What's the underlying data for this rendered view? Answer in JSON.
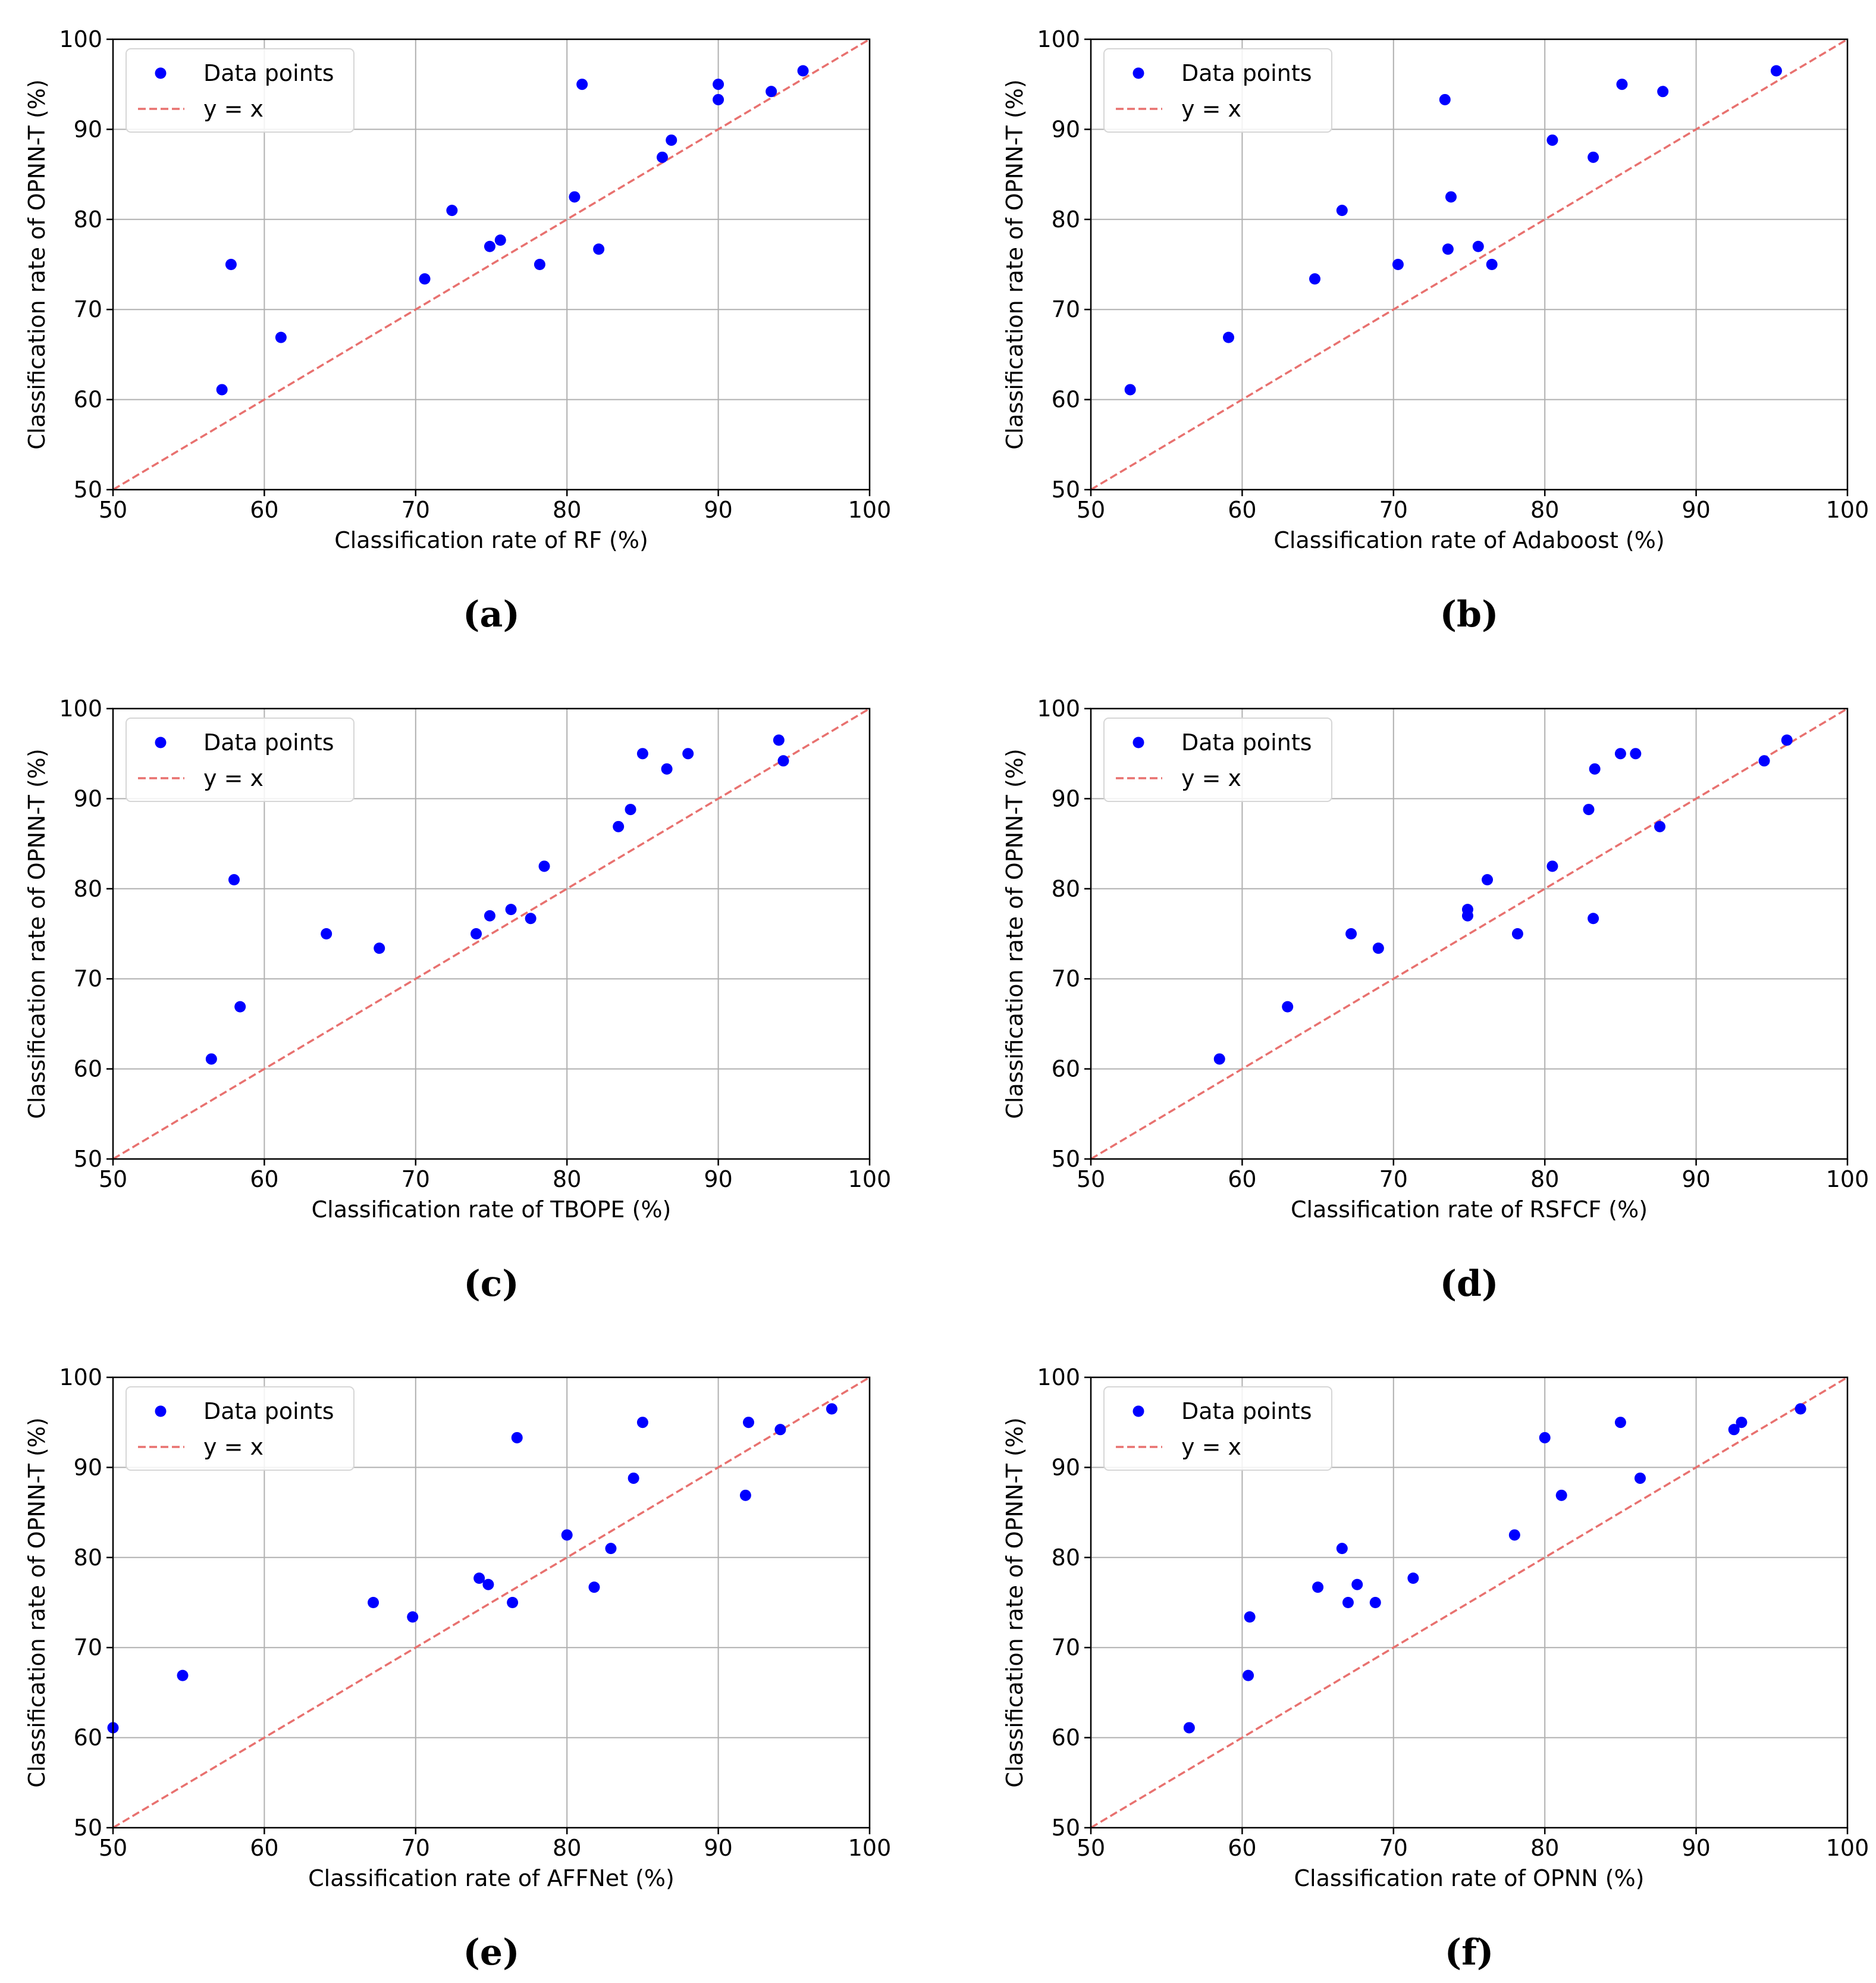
{
  "legend": {
    "points_label": "Data points",
    "line_label": "y = x"
  },
  "colors": {
    "points": "#0000ff",
    "diagonal": "#e8716f",
    "grid": "#b0b0b0",
    "axis": "#000000"
  },
  "chart_data": [
    {
      "type": "scatter",
      "panel_label": "(a)",
      "xlabel": "Classification rate of RF (%)",
      "ylabel": "Classification rate of OPNN-T (%)",
      "xlim": [
        50,
        100
      ],
      "ylim": [
        50,
        100
      ],
      "xticks": [
        50,
        60,
        70,
        80,
        90,
        100
      ],
      "yticks": [
        50,
        60,
        70,
        80,
        90,
        100
      ],
      "grid": true,
      "legend_position": "top-left",
      "series": [
        {
          "name": "Data points",
          "x": [
            57.2,
            57.8,
            61.1,
            70.6,
            72.4,
            74.9,
            75.6,
            78.2,
            80.5,
            81.0,
            82.1,
            86.3,
            86.9,
            90.0,
            90.0,
            93.5,
            95.6
          ],
          "y": [
            61.1,
            75.0,
            66.9,
            73.4,
            81.0,
            77.0,
            77.7,
            75.0,
            82.5,
            95.0,
            76.7,
            86.9,
            88.8,
            95.0,
            93.3,
            94.2,
            96.5
          ]
        }
      ]
    },
    {
      "type": "scatter",
      "panel_label": "(b)",
      "xlabel": "Classification rate of Adaboost (%)",
      "ylabel": "Classification rate of OPNN-T (%)",
      "xlim": [
        50,
        100
      ],
      "ylim": [
        50,
        100
      ],
      "xticks": [
        50,
        60,
        70,
        80,
        90,
        100
      ],
      "yticks": [
        50,
        60,
        70,
        80,
        90,
        100
      ],
      "grid": true,
      "legend_position": "top-left",
      "series": [
        {
          "name": "Data points",
          "x": [
            52.6,
            59.1,
            64.8,
            66.6,
            70.3,
            73.4,
            73.6,
            73.8,
            75.6,
            76.5,
            80.5,
            83.2,
            85.1,
            87.8,
            95.3
          ],
          "y": [
            61.1,
            66.9,
            73.4,
            81.0,
            75.0,
            93.3,
            76.7,
            82.5,
            77.0,
            75.0,
            88.8,
            86.9,
            95.0,
            94.2,
            96.5
          ]
        }
      ]
    },
    {
      "type": "scatter",
      "panel_label": "(c)",
      "xlabel": "Classification rate of TBOPE (%)",
      "ylabel": "Classification rate of OPNN-T (%)",
      "xlim": [
        50,
        100
      ],
      "ylim": [
        50,
        100
      ],
      "xticks": [
        50,
        60,
        70,
        80,
        90,
        100
      ],
      "yticks": [
        50,
        60,
        70,
        80,
        90,
        100
      ],
      "grid": true,
      "legend_position": "top-left",
      "series": [
        {
          "name": "Data points",
          "x": [
            56.5,
            58.0,
            58.4,
            64.1,
            67.6,
            74.0,
            74.9,
            76.3,
            77.6,
            78.5,
            83.4,
            84.2,
            85.0,
            86.6,
            88.0,
            94.0,
            94.3
          ],
          "y": [
            61.1,
            81.0,
            66.9,
            75.0,
            73.4,
            75.0,
            77.0,
            77.7,
            76.7,
            82.5,
            86.9,
            88.8,
            95.0,
            93.3,
            95.0,
            96.5,
            94.2
          ]
        }
      ]
    },
    {
      "type": "scatter",
      "panel_label": "(d)",
      "xlabel": "Classification rate of RSFCF (%)",
      "ylabel": "Classification rate of OPNN-T (%)",
      "xlim": [
        50,
        100
      ],
      "ylim": [
        50,
        100
      ],
      "xticks": [
        50,
        60,
        70,
        80,
        90,
        100
      ],
      "yticks": [
        50,
        60,
        70,
        80,
        90,
        100
      ],
      "grid": true,
      "legend_position": "top-left",
      "series": [
        {
          "name": "Data points",
          "x": [
            58.5,
            63.0,
            67.2,
            69.0,
            74.9,
            74.9,
            76.2,
            78.2,
            80.5,
            82.9,
            83.2,
            83.3,
            85.0,
            86.0,
            87.6,
            94.5,
            96.0
          ],
          "y": [
            61.1,
            66.9,
            75.0,
            73.4,
            77.7,
            77.0,
            81.0,
            75.0,
            82.5,
            88.8,
            76.7,
            93.3,
            95.0,
            95.0,
            86.9,
            94.2,
            96.5
          ]
        }
      ]
    },
    {
      "type": "scatter",
      "panel_label": "(e)",
      "xlabel": "Classification rate of AFFNet (%)",
      "ylabel": "Classification rate of OPNN-T (%)",
      "xlim": [
        50,
        100
      ],
      "ylim": [
        50,
        100
      ],
      "xticks": [
        50,
        60,
        70,
        80,
        90,
        100
      ],
      "yticks": [
        50,
        60,
        70,
        80,
        90,
        100
      ],
      "grid": true,
      "legend_position": "top-left",
      "series": [
        {
          "name": "Data points",
          "x": [
            50.0,
            54.6,
            67.2,
            69.8,
            74.2,
            74.8,
            76.4,
            76.7,
            80.0,
            81.8,
            82.9,
            84.4,
            85.0,
            91.8,
            92.0,
            94.1,
            97.5
          ],
          "y": [
            61.1,
            66.9,
            75.0,
            73.4,
            77.7,
            77.0,
            75.0,
            93.3,
            82.5,
            76.7,
            81.0,
            88.8,
            95.0,
            86.9,
            95.0,
            94.2,
            96.5
          ]
        }
      ]
    },
    {
      "type": "scatter",
      "panel_label": "(f)",
      "xlabel": "Classification rate of OPNN (%)",
      "ylabel": "Classification rate of OPNN-T (%)",
      "xlim": [
        50,
        100
      ],
      "ylim": [
        50,
        100
      ],
      "xticks": [
        50,
        60,
        70,
        80,
        90,
        100
      ],
      "yticks": [
        50,
        60,
        70,
        80,
        90,
        100
      ],
      "grid": true,
      "legend_position": "top-left",
      "series": [
        {
          "name": "Data points",
          "x": [
            56.5,
            60.4,
            60.5,
            65.0,
            66.6,
            67.0,
            67.6,
            68.8,
            71.3,
            78.0,
            80.0,
            81.1,
            85.0,
            86.3,
            92.5,
            93.0,
            96.9
          ],
          "y": [
            61.1,
            66.9,
            73.4,
            76.7,
            81.0,
            75.0,
            77.0,
            75.0,
            77.7,
            82.5,
            93.3,
            86.9,
            95.0,
            88.8,
            94.2,
            95.0,
            96.5
          ]
        }
      ]
    }
  ]
}
